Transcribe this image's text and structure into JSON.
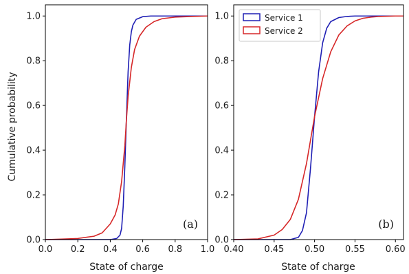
{
  "chart_data": [
    {
      "type": "line",
      "panel_label": "(a)",
      "xlabel": "State of charge",
      "ylabel": "Cumulative probability",
      "xlim": [
        0.0,
        1.0
      ],
      "ylim": [
        0.0,
        1.05
      ],
      "xticks": [
        "0.0",
        "0.2",
        "0.4",
        "0.6",
        "0.8",
        "1.0"
      ],
      "yticks": [
        "0.0",
        "0.2",
        "0.4",
        "0.6",
        "0.8",
        "1.0"
      ],
      "grid": false,
      "legend": null,
      "series": [
        {
          "color": "#1f1fb4",
          "x": [
            0.0,
            0.4,
            0.44,
            0.46,
            0.47,
            0.48,
            0.49,
            0.5,
            0.51,
            0.52,
            0.53,
            0.54,
            0.56,
            0.6,
            0.65,
            0.7,
            1.0
          ],
          "y": [
            0.0,
            0.0,
            0.005,
            0.02,
            0.05,
            0.15,
            0.33,
            0.55,
            0.75,
            0.87,
            0.93,
            0.96,
            0.985,
            0.997,
            1.0,
            1.0,
            1.0
          ]
        },
        {
          "color": "#d62728",
          "x": [
            0.0,
            0.1,
            0.2,
            0.3,
            0.35,
            0.4,
            0.43,
            0.45,
            0.47,
            0.49,
            0.5,
            0.51,
            0.53,
            0.55,
            0.58,
            0.62,
            0.67,
            0.72,
            0.8,
            0.9,
            1.0
          ],
          "y": [
            0.0,
            0.002,
            0.005,
            0.015,
            0.03,
            0.07,
            0.11,
            0.16,
            0.26,
            0.42,
            0.54,
            0.64,
            0.77,
            0.85,
            0.91,
            0.95,
            0.975,
            0.988,
            0.995,
            0.998,
            1.0
          ]
        }
      ]
    },
    {
      "type": "line",
      "panel_label": "(b)",
      "xlabel": "State of charge",
      "ylabel": "",
      "xlim": [
        0.4,
        0.61
      ],
      "ylim": [
        0.0,
        1.05
      ],
      "xticks": [
        "0.40",
        "0.45",
        "0.50",
        "0.55",
        "0.60"
      ],
      "yticks": [
        "0.0",
        "0.2",
        "0.4",
        "0.6",
        "0.8",
        "1.0"
      ],
      "grid": false,
      "legend": "top-left",
      "series": [
        {
          "name": "Service 1",
          "color": "#1f1fb4",
          "x": [
            0.4,
            0.47,
            0.48,
            0.485,
            0.49,
            0.495,
            0.5,
            0.505,
            0.51,
            0.515,
            0.52,
            0.53,
            0.54,
            0.55,
            0.56,
            0.61
          ],
          "y": [
            0.0,
            0.0,
            0.01,
            0.04,
            0.12,
            0.32,
            0.55,
            0.75,
            0.88,
            0.945,
            0.975,
            0.993,
            0.998,
            1.0,
            1.0,
            1.0
          ]
        },
        {
          "name": "Service 2",
          "color": "#d62728",
          "x": [
            0.4,
            0.43,
            0.45,
            0.46,
            0.47,
            0.48,
            0.49,
            0.5,
            0.51,
            0.52,
            0.53,
            0.54,
            0.55,
            0.56,
            0.57,
            0.58,
            0.6,
            0.61
          ],
          "y": [
            0.0,
            0.003,
            0.02,
            0.045,
            0.09,
            0.18,
            0.34,
            0.55,
            0.72,
            0.84,
            0.915,
            0.955,
            0.978,
            0.99,
            0.995,
            0.998,
            1.0,
            1.0
          ]
        }
      ]
    }
  ]
}
